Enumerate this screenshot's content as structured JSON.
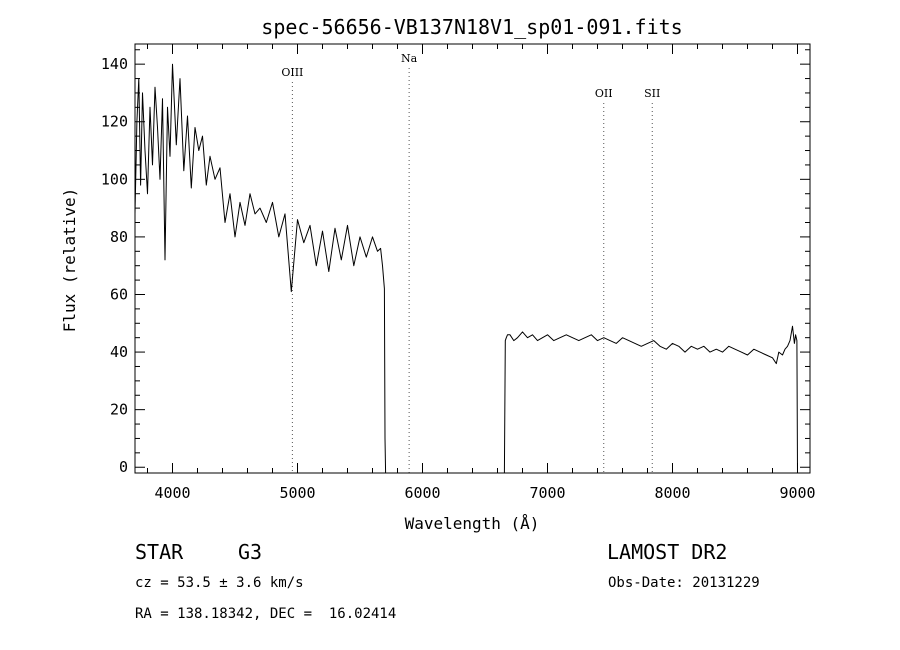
{
  "chart_data": {
    "type": "line",
    "title": "spec-56656-VB137N18V1_sp01-091.fits",
    "xlabel": "Wavelength (Å)",
    "ylabel": "Flux (relative)",
    "xlim": [
      3700,
      9100
    ],
    "ylim": [
      -2,
      147
    ],
    "x_ticks": [
      4000,
      5000,
      6000,
      7000,
      8000,
      9000
    ],
    "y_ticks": [
      0,
      20,
      40,
      60,
      80,
      100,
      120,
      140
    ],
    "grid": false,
    "legend": "none",
    "line_color": "#000000",
    "lines": [
      {
        "label": "OIII",
        "x": 4959
      },
      {
        "label": "Na",
        "x": 5893
      },
      {
        "label": "OII",
        "x": 7450
      },
      {
        "label": "SII",
        "x": 7838
      }
    ],
    "series": [
      {
        "segments": [
          {
            "x": [
              3700,
              3715,
              3730,
              3745,
              3760,
              3780,
              3800,
              3820,
              3840,
              3860,
              3880,
              3900,
              3920,
              3940,
              3960,
              3980,
              4000,
              4030,
              4060,
              4090,
              4120,
              4150,
              4180,
              4210,
              4240,
              4270,
              4300,
              4340,
              4380,
              4420,
              4460,
              4500,
              4540,
              4580,
              4620,
              4660,
              4700,
              4750,
              4800,
              4850,
              4900,
              4950,
              5000,
              5050,
              5100,
              5150,
              5200,
              5250,
              5300,
              5350,
              5400,
              5450,
              5500,
              5550,
              5600,
              5640,
              5665,
              5680,
              5695,
              5700,
              5705
            ],
            "y": [
              88,
              120,
              135,
              98,
              130,
              110,
              95,
              125,
              105,
              132,
              118,
              100,
              128,
              72,
              125,
              108,
              140,
              112,
              135,
              103,
              122,
              97,
              118,
              110,
              115,
              98,
              108,
              100,
              104,
              85,
              95,
              80,
              92,
              84,
              95,
              88,
              90,
              85,
              92,
              80,
              88,
              61,
              86,
              78,
              84,
              70,
              82,
              68,
              83,
              72,
              84,
              70,
              80,
              73,
              80,
              75,
              76,
              70,
              62,
              10,
              -2
            ]
          },
          {
            "x": [
              6655,
              6662,
              6670,
              6680,
              6700,
              6730,
              6760,
              6800,
              6840,
              6880,
              6920,
              6960,
              7000,
              7050,
              7100,
              7150,
              7200,
              7250,
              7300,
              7350,
              7400,
              7450,
              7500,
              7550,
              7600,
              7650,
              7700,
              7750,
              7800,
              7850,
              7900,
              7950,
              8000,
              8050,
              8100,
              8150,
              8200,
              8250,
              8300,
              8350,
              8400,
              8450,
              8500,
              8550,
              8600,
              8650,
              8700,
              8750,
              8800,
              8830,
              8850,
              8880,
              8900,
              8920,
              8940,
              8960,
              8975,
              8985,
              8995,
              9000
            ],
            "y": [
              -2,
              44,
              45,
              46,
              46,
              44,
              45,
              47,
              45,
              46,
              44,
              45,
              46,
              44,
              45,
              46,
              45,
              44,
              45,
              46,
              44,
              45,
              44,
              43,
              45,
              44,
              43,
              42,
              43,
              44,
              42,
              41,
              43,
              42,
              40,
              42,
              41,
              42,
              40,
              41,
              40,
              42,
              41,
              40,
              39,
              41,
              40,
              39,
              38,
              36,
              40,
              39,
              41,
              42,
              44,
              49,
              43,
              46,
              44,
              -2
            ]
          }
        ]
      }
    ]
  },
  "info": {
    "object_class": "STAR",
    "subclass": "G3",
    "survey": "LAMOST DR2",
    "cz": "cz = 53.5 ± 3.6 km/s",
    "obs_date": "Obs-Date: 20131229",
    "coords": "RA = 138.18342, DEC =  16.02414"
  }
}
